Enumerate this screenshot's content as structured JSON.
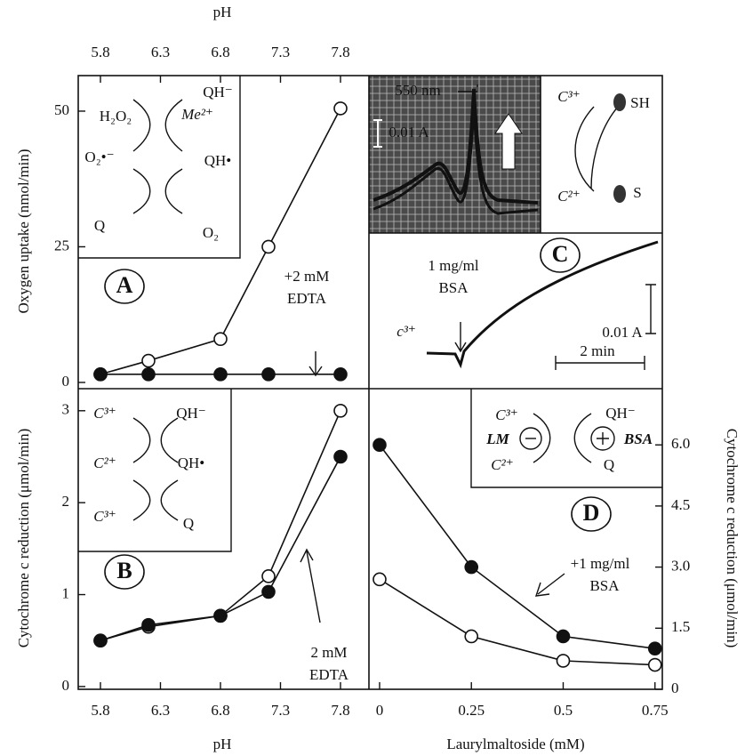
{
  "chart_data": [
    {
      "type": "line",
      "label": "A",
      "xlabel": "pH",
      "ylabel": "Oxygen uptake (nmol/min)",
      "x": [
        5.8,
        6.2,
        6.8,
        7.2,
        7.8
      ],
      "xlim": [
        5.615,
        8.037
      ],
      "xticks": [
        5.8,
        6.3,
        6.8,
        7.3,
        7.8
      ],
      "ylim": [
        -1.15,
        56.55
      ],
      "yticks": [
        0,
        25,
        50
      ],
      "series": [
        {
          "marker": "open",
          "color": "#111111",
          "values": [
            1.5,
            4,
            8,
            25,
            50.5
          ]
        },
        {
          "marker": "filled",
          "color": "#111111",
          "values": [
            1.5,
            1.5,
            1.5,
            1.5,
            1.5
          ]
        }
      ],
      "annotations": [
        "H₂O₂",
        "QH⁻",
        "Me²⁺",
        "O₂•⁻",
        "QH•",
        "Q",
        "O₂",
        "+2 mM",
        "EDTA"
      ]
    },
    {
      "type": "line",
      "label": "B",
      "xlabel": "pH",
      "ylabel": "Cytochrome c reduction (μmol/min)",
      "x": [
        5.8,
        6.2,
        6.8,
        7.2,
        7.8
      ],
      "xlim": [
        5.615,
        8.037
      ],
      "xticks": [
        5.8,
        6.3,
        6.8,
        7.3,
        7.8
      ],
      "ylim": [
        -0.03,
        3.24
      ],
      "yticks": [
        0,
        1,
        2,
        3
      ],
      "series": [
        {
          "marker": "open",
          "color": "#111111",
          "values": [
            0.5,
            0.65,
            0.77,
            1.2,
            3.0
          ]
        },
        {
          "marker": "filled",
          "color": "#111111",
          "values": [
            0.5,
            0.67,
            0.77,
            1.03,
            2.5
          ]
        }
      ],
      "annotations": [
        "C³⁺",
        "QH⁻",
        "C²⁺",
        "QH•",
        "C³⁺",
        "Q",
        "2 mM",
        "EDTA"
      ]
    },
    {
      "type": "line",
      "label": "D",
      "xlabel": "Laurylmaltoside (mM)",
      "ylabel": "Cytochrome c reduction (μmol/min)",
      "x": [
        0,
        0.25,
        0.5,
        0.75
      ],
      "xlim": [
        -0.029,
        0.77
      ],
      "xticks": [
        0,
        0.25,
        0.5,
        0.75
      ],
      "ylim": [
        0,
        7.38
      ],
      "yticks": [
        0,
        1.5,
        {
          "value": 3,
          "label": "3.0"
        },
        4.5,
        {
          "value": 6,
          "label": "6.0"
        }
      ],
      "series": [
        {
          "marker": "open",
          "color": "#111111",
          "values": [
            2.7,
            1.3,
            0.7,
            0.6
          ]
        },
        {
          "marker": "filled",
          "color": "#111111",
          "values": [
            6.0,
            3.0,
            1.3,
            1.0
          ]
        }
      ],
      "annotations": [
        "C³⁺",
        "QH⁻",
        "LM",
        "BSA",
        "C²⁺",
        "Q",
        "+1 mg/ml",
        "BSA"
      ]
    }
  ],
  "panel_c": {
    "label": "C",
    "texts": [
      "550 nm",
      "0.01 A",
      "C³⁺",
      "SH",
      "C²⁺",
      "S",
      "1 mg/ml",
      "BSA",
      "c³⁺",
      "0.01 A",
      "2 min"
    ]
  }
}
